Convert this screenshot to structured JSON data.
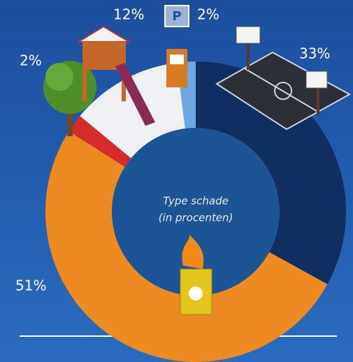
{
  "chart_data": {
    "type": "donut",
    "center_text": [
      "Type schade",
      "(in procenten)"
    ],
    "values": [
      33,
      51,
      2,
      12,
      2
    ],
    "value_labels": [
      "33%",
      "51%",
      "2%",
      "12%",
      "2%"
    ],
    "colors": [
      "#0f2f63",
      "#ee8a22",
      "#d62b2b",
      "#eef0f4",
      "#6fa7e2"
    ]
  }
}
